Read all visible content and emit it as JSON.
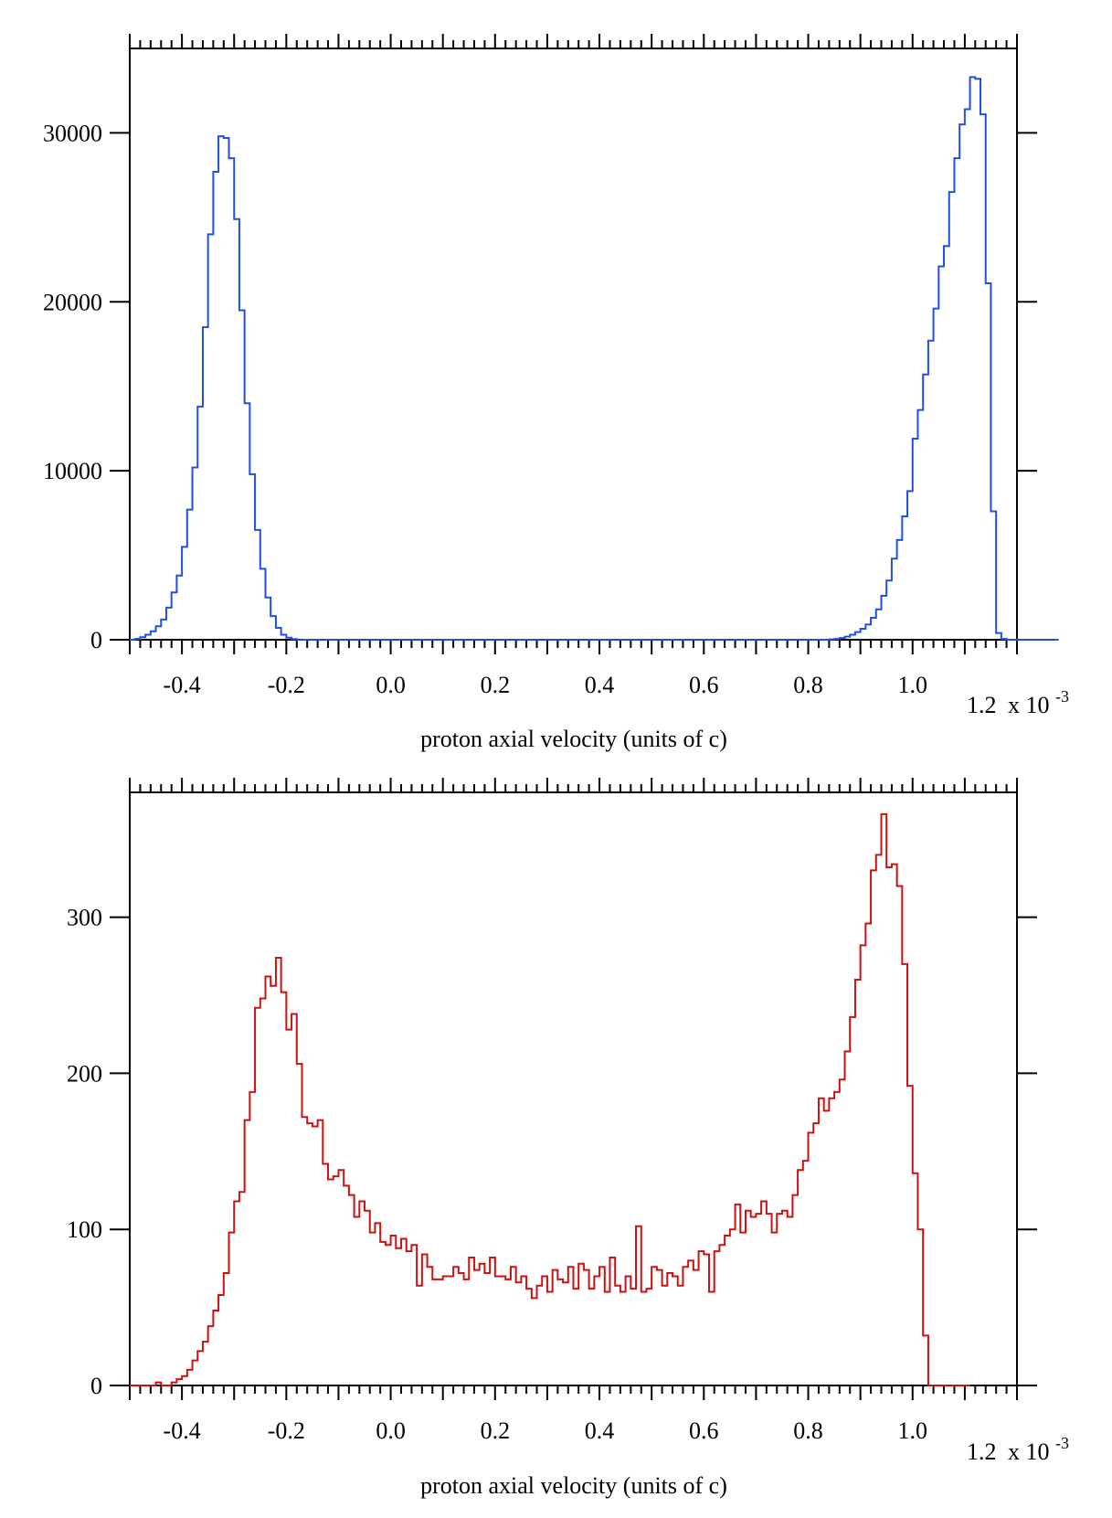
{
  "colors": {
    "background": "#ffffff",
    "axes": "#000000",
    "top_series": "#1f4fe6",
    "bottom_series": "#cc1111"
  },
  "chart_data": [
    {
      "type": "bar",
      "style": "step-histogram",
      "title": "",
      "xlabel": "proton axial velocity (units of c)",
      "x_tick_labels": [
        "-0.4",
        "-0.2",
        "0.0",
        "0.2",
        "0.4",
        "0.6",
        "0.8",
        "1.0",
        "1.2"
      ],
      "x_ticks": [
        -0.4,
        -0.2,
        0.0,
        0.2,
        0.4,
        0.6,
        0.8,
        1.0,
        1.2
      ],
      "x_exponent_label": {
        "prefix": "x 10",
        "superscript": "-3"
      },
      "xlim": [
        -0.5,
        1.2
      ],
      "bin_start": -0.5,
      "bin_width": 0.01,
      "ylabel": "",
      "y_tick_labels": [
        "0",
        "10000",
        "20000",
        "30000"
      ],
      "y_ticks": [
        0,
        10000,
        20000,
        30000
      ],
      "ylim": [
        0,
        35000
      ],
      "grid": false,
      "legend": "none",
      "series": [
        {
          "color": "#1f4fe6",
          "values": [
            0,
            50,
            150,
            300,
            500,
            800,
            1200,
            1900,
            2800,
            3800,
            5500,
            7700,
            10200,
            13800,
            18500,
            24000,
            27700,
            29800,
            29700,
            28500,
            24900,
            19500,
            14000,
            9800,
            6500,
            4200,
            2500,
            1400,
            700,
            300,
            120,
            40,
            10,
            0,
            0,
            0,
            0,
            0,
            0,
            0,
            0,
            0,
            0,
            0,
            0,
            0,
            0,
            0,
            0,
            0,
            0,
            0,
            0,
            0,
            0,
            0,
            0,
            0,
            0,
            0,
            0,
            0,
            0,
            0,
            0,
            0,
            0,
            0,
            0,
            0,
            0,
            0,
            0,
            0,
            0,
            0,
            0,
            0,
            0,
            0,
            0,
            0,
            0,
            0,
            0,
            0,
            0,
            0,
            0,
            0,
            0,
            0,
            0,
            0,
            0,
            0,
            0,
            0,
            0,
            0,
            0,
            0,
            0,
            0,
            0,
            0,
            0,
            0,
            0,
            0,
            0,
            0,
            0,
            0,
            0,
            0,
            0,
            0,
            0,
            0,
            0,
            0,
            0,
            0,
            0,
            0,
            0,
            0,
            0,
            0,
            0,
            0,
            0,
            0,
            20,
            50,
            100,
            180,
            300,
            450,
            650,
            900,
            1300,
            1800,
            2600,
            3500,
            4800,
            5900,
            7300,
            8800,
            11900,
            13600,
            15700,
            17700,
            19600,
            22100,
            23300,
            26500,
            28500,
            30500,
            31400,
            33300,
            33200,
            31100,
            21100,
            7600,
            400,
            50,
            0,
            0,
            0,
            0,
            0,
            0,
            0,
            0,
            0,
            0
          ]
        }
      ]
    },
    {
      "type": "bar",
      "style": "step-histogram",
      "title": "",
      "xlabel": "proton axial velocity (units of c)",
      "x_tick_labels": [
        "-0.4",
        "-0.2",
        "0.0",
        "0.2",
        "0.4",
        "0.6",
        "0.8",
        "1.0",
        "1.2"
      ],
      "x_ticks": [
        -0.4,
        -0.2,
        0.0,
        0.2,
        0.4,
        0.6,
        0.8,
        1.0,
        1.2
      ],
      "x_exponent_label": {
        "prefix": "x 10",
        "superscript": "-3"
      },
      "xlim": [
        -0.5,
        1.2
      ],
      "bin_start": -0.5,
      "bin_width": 0.01,
      "ylabel": "",
      "y_tick_labels": [
        "0",
        "100",
        "200",
        "300"
      ],
      "y_ticks": [
        0,
        100,
        200,
        300
      ],
      "ylim": [
        0,
        380
      ],
      "grid": false,
      "legend": "none",
      "series": [
        {
          "color": "#cc1111",
          "values": [
            0,
            0,
            0,
            0,
            0,
            2,
            0,
            0,
            2,
            4,
            6,
            10,
            16,
            22,
            28,
            38,
            48,
            58,
            72,
            98,
            118,
            124,
            170,
            188,
            242,
            248,
            262,
            256,
            274,
            252,
            228,
            238,
            206,
            172,
            168,
            166,
            170,
            142,
            132,
            134,
            138,
            128,
            122,
            108,
            118,
            112,
            98,
            104,
            92,
            90,
            96,
            88,
            94,
            86,
            90,
            64,
            84,
            76,
            68,
            68,
            70,
            70,
            76,
            72,
            68,
            82,
            74,
            78,
            72,
            82,
            70,
            70,
            68,
            76,
            66,
            70,
            62,
            56,
            64,
            70,
            60,
            74,
            68,
            66,
            76,
            62,
            78,
            74,
            62,
            70,
            76,
            60,
            82,
            64,
            60,
            70,
            62,
            102,
            60,
            62,
            76,
            74,
            64,
            72,
            70,
            64,
            76,
            80,
            74,
            86,
            84,
            60,
            86,
            90,
            96,
            100,
            116,
            98,
            112,
            108,
            110,
            118,
            110,
            98,
            110,
            112,
            108,
            122,
            138,
            144,
            162,
            168,
            184,
            176,
            184,
            188,
            196,
            214,
            236,
            260,
            282,
            296,
            330,
            340,
            366,
            332,
            334,
            320,
            270,
            192,
            136,
            100,
            32,
            0,
            0,
            0,
            0,
            0,
            0,
            0,
            0
          ]
        }
      ]
    }
  ]
}
